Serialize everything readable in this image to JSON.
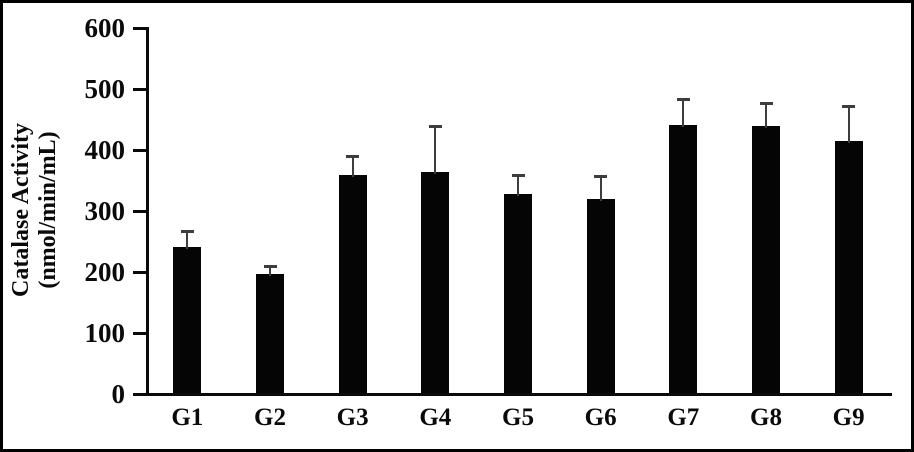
{
  "chart_data": {
    "type": "bar",
    "title": "",
    "xlabel": "",
    "ylabel": "Catalase Activity (nmol/min/mL)",
    "ylabel_line1": "Catalase Activity",
    "ylabel_line2": "(nmol/min/mL)",
    "categories": [
      "G1",
      "G2",
      "G3",
      "G4",
      "G5",
      "G6",
      "G7",
      "G8",
      "G9"
    ],
    "values": [
      240,
      195,
      357,
      363,
      327,
      318,
      440,
      438,
      413
    ],
    "errors_plus": [
      25,
      13,
      32,
      74,
      30,
      38,
      42,
      38,
      57
    ],
    "ylim": [
      0,
      600
    ],
    "yticks": [
      0,
      100,
      200,
      300,
      400,
      500,
      600
    ],
    "grid": false,
    "legend": "none",
    "bar_color": "#050505",
    "error_bar_color": "#3d3d3d",
    "frame_color": "#000000"
  }
}
